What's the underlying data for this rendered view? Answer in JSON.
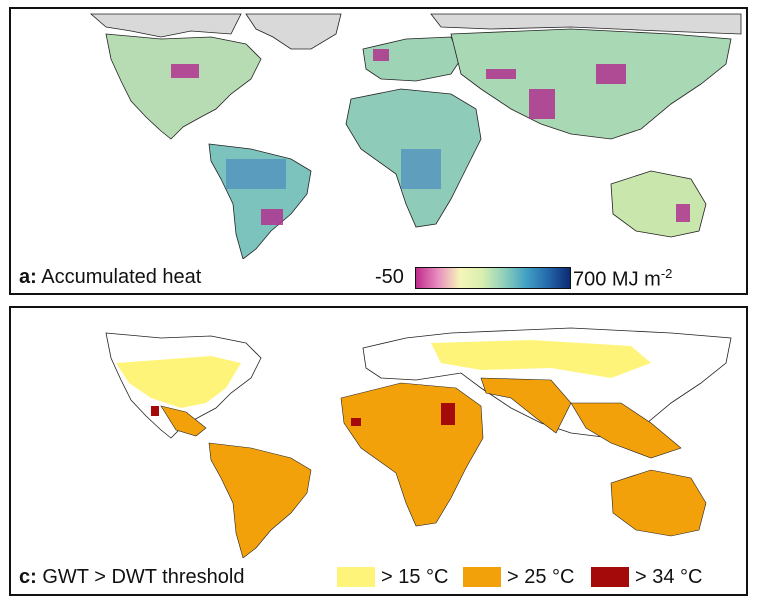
{
  "panel_a": {
    "letter": "a:",
    "title": "Accumulated heat",
    "colorbar": {
      "min_label": "-50",
      "max_label": "700 MJ m",
      "unit_exp": "-2",
      "stops": [
        "#c02b8a",
        "#e88ec0",
        "#f6f5b8",
        "#d9efb0",
        "#8fd0bb",
        "#42a1c4",
        "#2468ac",
        "#0c2a72"
      ]
    }
  },
  "panel_c": {
    "letter": "c:",
    "title": "GWT > DWT threshold",
    "legend": [
      {
        "label": "> 15 °C",
        "color": "#fff47a"
      },
      {
        "label": "> 25 °C",
        "color": "#f3a10a"
      },
      {
        "label": "> 34 °C",
        "color": "#a50a0a"
      }
    ]
  },
  "colors": {
    "land_a": "#b7dcb3",
    "ice": "#d9d9d9",
    "magenta": "#b0338f",
    "blue": "#4f8fbf"
  }
}
